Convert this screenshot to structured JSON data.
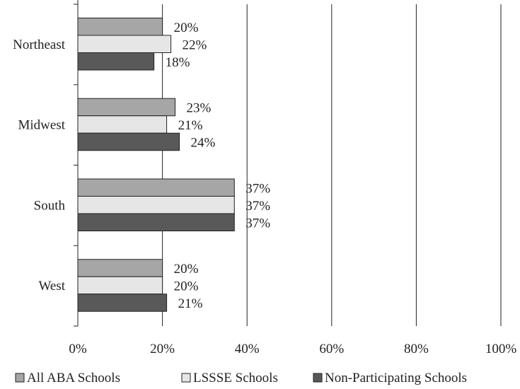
{
  "chart_data": {
    "type": "bar",
    "orientation": "horizontal",
    "categories": [
      "Northeast",
      "Midwest",
      "South",
      "West"
    ],
    "series": [
      {
        "name": "All ABA Schools",
        "values": [
          20,
          23,
          37,
          20
        ],
        "labels": [
          "20%",
          "23%",
          "37%",
          "20%"
        ],
        "color": "#a6a6a6"
      },
      {
        "name": "LSSSE Schools",
        "values": [
          22,
          21,
          37,
          20
        ],
        "labels": [
          "22%",
          "21%",
          "37%",
          "20%"
        ],
        "color": "#e6e6e6"
      },
      {
        "name": "Non-Participating Schools",
        "values": [
          18,
          24,
          37,
          21
        ],
        "labels": [
          "18%",
          "24%",
          "37%",
          "21%"
        ],
        "color": "#595959"
      }
    ],
    "xlim": [
      0,
      100
    ],
    "x_ticks": [
      0,
      20,
      40,
      60,
      80,
      100
    ],
    "x_tick_labels": [
      "0%",
      "20%",
      "40%",
      "60%",
      "80%",
      "100%"
    ],
    "grid": "vertical",
    "legend_position": "bottom"
  }
}
